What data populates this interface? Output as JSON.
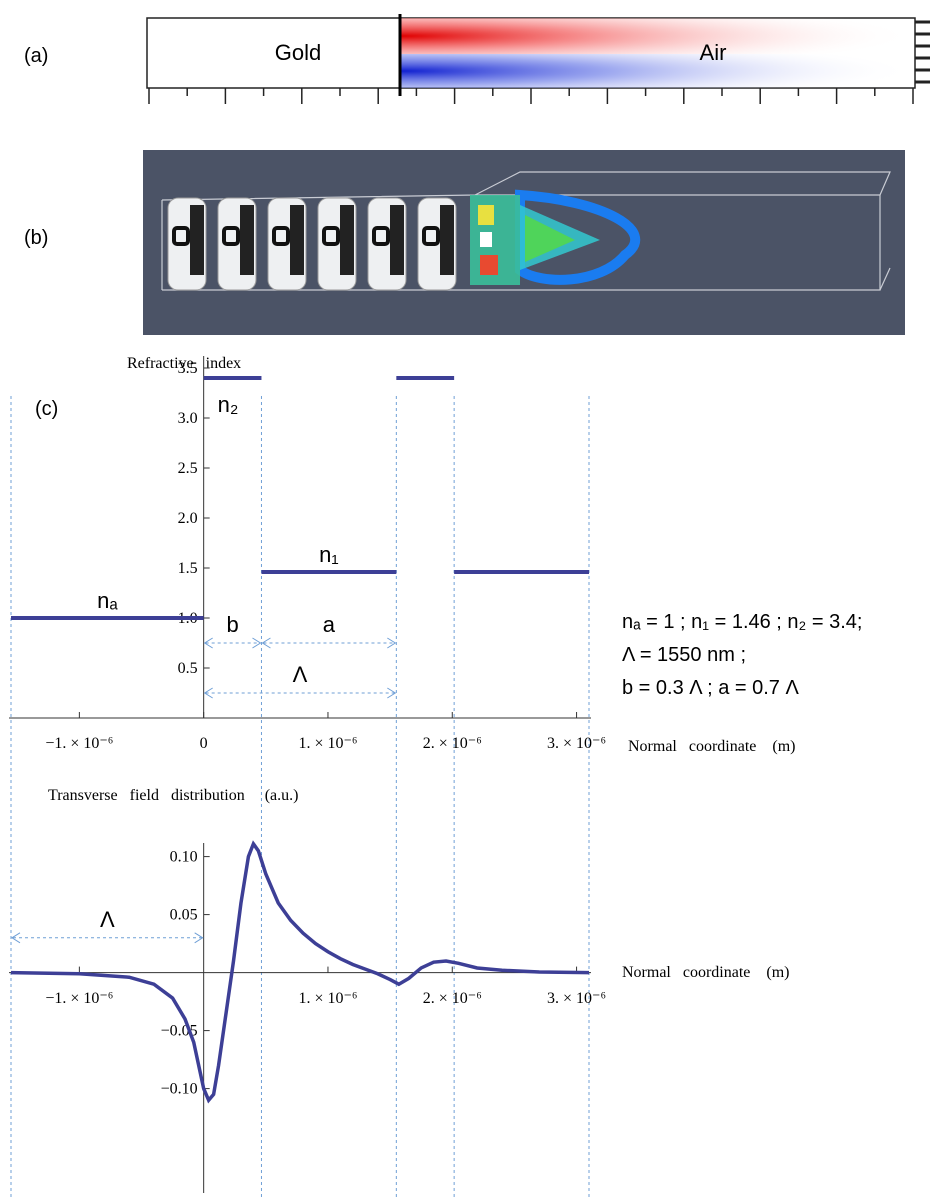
{
  "panels": {
    "a": {
      "label": "(a)",
      "left_text": "Gold",
      "right_text": "Air"
    },
    "b": {
      "label": "(b)"
    },
    "c": {
      "label": "(c)"
    }
  },
  "parameters": [
    "nₐ = 1 ;  n₁ = 1.46 ;  n₂ = 3.4;",
    "Λ = 1550 nm ;",
    "b = 0.3 Λ ;  a = 0.7 Λ"
  ],
  "chart_data": [
    {
      "type": "step",
      "y_label": "Refractive   index",
      "x_label": "Normal   coordinate    (m)",
      "color": "#3d3f96",
      "guide_color": "#6f9fd6",
      "xlim": [
        -1.55e-06,
        3.1e-06
      ],
      "ylim": [
        0,
        3.6
      ],
      "xticks": [
        {
          "value": -1e-06,
          "label": "−1. × 10⁻⁶"
        },
        0,
        {
          "value": 1e-06,
          "label": "1. × 10⁻⁶"
        },
        {
          "value": 2e-06,
          "label": "2. × 10⁻⁶"
        },
        {
          "value": 3e-06,
          "label": "3. × 10⁻⁶"
        }
      ],
      "yticks": [
        0.5,
        {
          "value": 1.0,
          "label": "1.0"
        },
        1.5,
        {
          "value": 2.0,
          "label": "2.0"
        },
        2.5,
        {
          "value": 3.0,
          "label": "3.0"
        },
        3.5
      ],
      "guide_lines": [
        -1.55e-06,
        4.65e-07,
        1.55e-06,
        2.015e-06,
        3.1e-06
      ],
      "segments": [
        {
          "x": [
            -1.55e-06,
            0
          ],
          "value": 1.0,
          "label": "nₐ"
        },
        {
          "x": [
            0,
            4.65e-07
          ],
          "value": 3.4,
          "label": "n₂"
        },
        {
          "x": [
            4.65e-07,
            1.55e-06
          ],
          "value": 1.46,
          "label": "n₁"
        },
        {
          "x": [
            1.55e-06,
            2.015e-06
          ],
          "value": 3.4
        },
        {
          "x": [
            2.015e-06,
            3.1e-06
          ],
          "value": 1.46
        }
      ],
      "dimensions": [
        {
          "label": "b",
          "x": [
            0,
            4.65e-07
          ],
          "y": 0.75
        },
        {
          "label": "a",
          "x": [
            4.65e-07,
            1.55e-06
          ],
          "y": 0.75
        },
        {
          "label": "Λ",
          "x": [
            0,
            1.55e-06
          ],
          "y": 0.25
        }
      ]
    },
    {
      "type": "line",
      "y_label": "Transverse   field   distribution     (a.u.)",
      "x_label": "Normal   coordinate    (m)",
      "color": "#3d3f96",
      "guide_color": "#6f9fd6",
      "xlim": [
        -1.55e-06,
        3.1e-06
      ],
      "ylim": [
        -0.19,
        0.11
      ],
      "xticks": [
        {
          "value": -1e-06,
          "label": "−1. × 10⁻⁶"
        },
        {
          "value": 1e-06,
          "label": "1. × 10⁻⁶"
        },
        {
          "value": 2e-06,
          "label": "2. × 10⁻⁶"
        },
        {
          "value": 3e-06,
          "label": "3. × 10⁻⁶"
        }
      ],
      "yticks": [
        {
          "value": -0.1,
          "label": "−0.10"
        },
        {
          "value": -0.05,
          "label": "−0.05"
        },
        0.05,
        {
          "value": 0.1,
          "label": "0.10"
        }
      ],
      "x": [
        -1.55e-06,
        -1e-06,
        -6e-07,
        -4e-07,
        -2.5e-07,
        -1.5e-07,
        -8e-08,
        -3e-08,
        0,
        4e-08,
        8e-08,
        1.2e-07,
        1.8e-07,
        2.4e-07,
        3e-07,
        3.6e-07,
        4e-07,
        4.4e-07,
        5e-07,
        6e-07,
        7e-07,
        8e-07,
        9e-07,
        1e-06,
        1.1e-06,
        1.2e-06,
        1.3e-06,
        1.4e-06,
        1.5e-06,
        1.57e-06,
        1.65e-06,
        1.75e-06,
        1.85e-06,
        1.95e-06,
        2.05e-06,
        2.2e-06,
        2.4e-06,
        2.7e-06,
        3.1e-06
      ],
      "values": [
        0,
        -0.001,
        -0.004,
        -0.01,
        -0.022,
        -0.04,
        -0.06,
        -0.085,
        -0.1,
        -0.11,
        -0.105,
        -0.08,
        -0.035,
        0.01,
        0.06,
        0.1,
        0.111,
        0.105,
        0.085,
        0.06,
        0.045,
        0.034,
        0.025,
        0.018,
        0.012,
        0.007,
        0.003,
        -0.001,
        -0.006,
        -0.01,
        -0.005,
        0.004,
        0.009,
        0.01,
        0.008,
        0.004,
        0.002,
        0.0005,
        0
      ],
      "dimensions": [
        {
          "label": "Λ",
          "x": [
            -1.55e-06,
            0
          ],
          "y": 0.03
        }
      ]
    }
  ]
}
